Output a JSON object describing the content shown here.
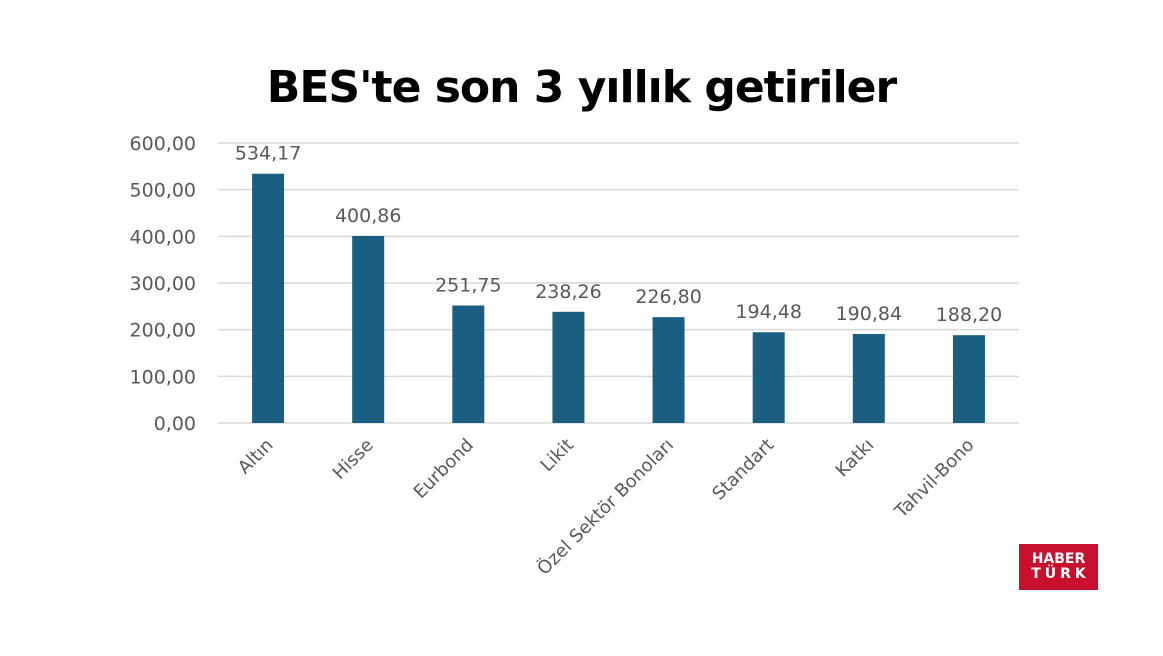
{
  "colors": {
    "bar": "#1a5e82",
    "grid": "#d9d9d9",
    "tick_text": "#595959",
    "logo_bg": "#c8102e"
  },
  "logo": {
    "line1": "HABER",
    "line2": "TÜRK"
  },
  "chart_data": {
    "type": "bar",
    "title": "BES'te son 3 yıllık getiriler",
    "categories": [
      "Altın",
      "Hisse",
      "Eurbond",
      "Likit",
      "Özel Sektör Bonoları",
      "Standart",
      "Katkı",
      "Tahvil-Bono"
    ],
    "values": [
      534.17,
      400.86,
      251.75,
      238.26,
      226.8,
      194.48,
      190.84,
      188.2
    ],
    "data_labels": [
      "534,17",
      "400,86",
      "251,75",
      "238,26",
      "226,80",
      "194,48",
      "190,84",
      "188,20"
    ],
    "ylim": [
      0,
      600
    ],
    "yticks": [
      "0,00",
      "100,00",
      "200,00",
      "300,00",
      "400,00",
      "500,00",
      "600,00"
    ],
    "grid": true,
    "legend": "none",
    "xlabel": "",
    "ylabel": ""
  }
}
